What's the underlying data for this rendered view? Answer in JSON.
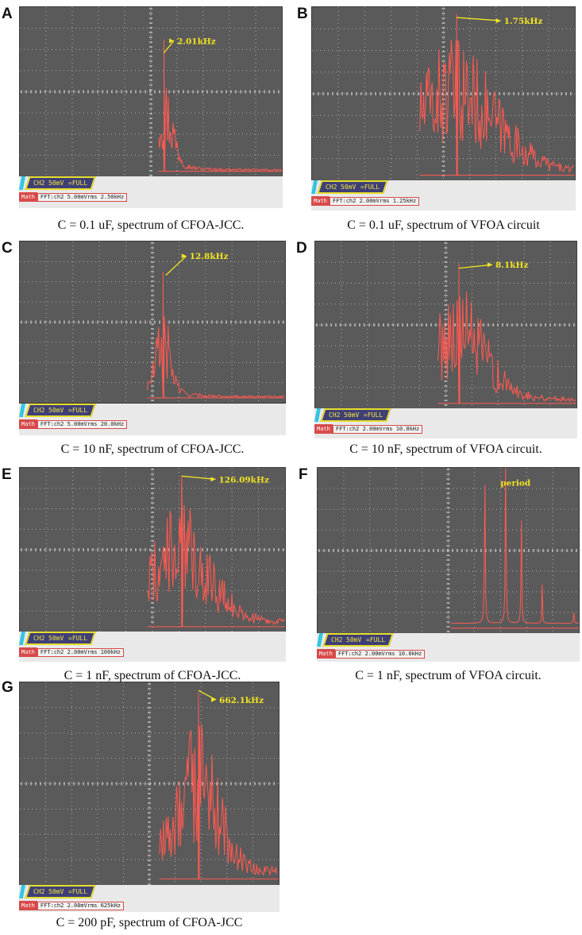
{
  "panels": [
    {
      "id": "A",
      "letter": "A",
      "annotation": "2.01kHz",
      "ch2_label": "CH2",
      "ch2_value": "50mV",
      "ch2_coupling": "=FULL",
      "math_label": "Math",
      "fft": "FFT:ch2 5.00mVrms 2.50kHz",
      "caption": "C = 0.1 uF, spectrum of CFOA-JCC."
    },
    {
      "id": "B",
      "letter": "B",
      "annotation": "1.75kHz",
      "ch2_label": "CH2",
      "ch2_value": "50mV",
      "ch2_coupling": "=FULL",
      "math_label": "Math",
      "fft": "FFT:ch2 2.00mVrms 1.25kHz",
      "caption": "C = 0.1 uF, spectrum of VFOA circuit"
    },
    {
      "id": "C",
      "letter": "C",
      "annotation": "12.8kHz",
      "ch2_label": "CH2",
      "ch2_value": "50mV",
      "ch2_coupling": "=FULL",
      "math_label": "Math",
      "fft": "FFT:ch2 5.00mVrms 20.0kHz",
      "caption": "C = 10 nF, spectrum of CFOA-JCC."
    },
    {
      "id": "D",
      "letter": "D",
      "annotation": "8.1kHz",
      "ch2_label": "CH2",
      "ch2_value": "50mV",
      "ch2_coupling": "=FULL",
      "math_label": "Math",
      "fft": "FFT:ch2 2.00mVrms 10.0kHz",
      "caption": "C = 10 nF, spectrum of VFOA circuit."
    },
    {
      "id": "E",
      "letter": "E",
      "annotation": "126.09kHz",
      "ch2_label": "CH2",
      "ch2_value": "50mV",
      "ch2_coupling": "=FULL",
      "math_label": "Math",
      "fft": "FFT:ch2 2.00mVrms 100kHz",
      "caption": "C = 1 nF, spectrum of CFOA-JCC."
    },
    {
      "id": "F",
      "letter": "F",
      "annotation": "period",
      "ch2_label": "CH2",
      "ch2_value": "50mV",
      "ch2_coupling": "=FULL",
      "math_label": "Math",
      "fft": "FFT:ch2 2.00mVrms 10.0kHz",
      "caption": "C = 1 nF, spectrum of VFOA circuit."
    },
    {
      "id": "G",
      "letter": "G",
      "annotation": "662.1kHz",
      "ch2_label": "CH2",
      "ch2_value": "50mV",
      "ch2_coupling": "=FULL",
      "math_label": "Math",
      "fft": "FFT:ch2 2.00mVrms 625kHz",
      "caption": "C = 200 pF, spectrum of CFOA-JCC"
    }
  ],
  "colors": {
    "trace": "#ff5a52",
    "grid": "#c9c9c9",
    "annotation": "#f2e422",
    "screen": "#5a5a5a"
  }
}
